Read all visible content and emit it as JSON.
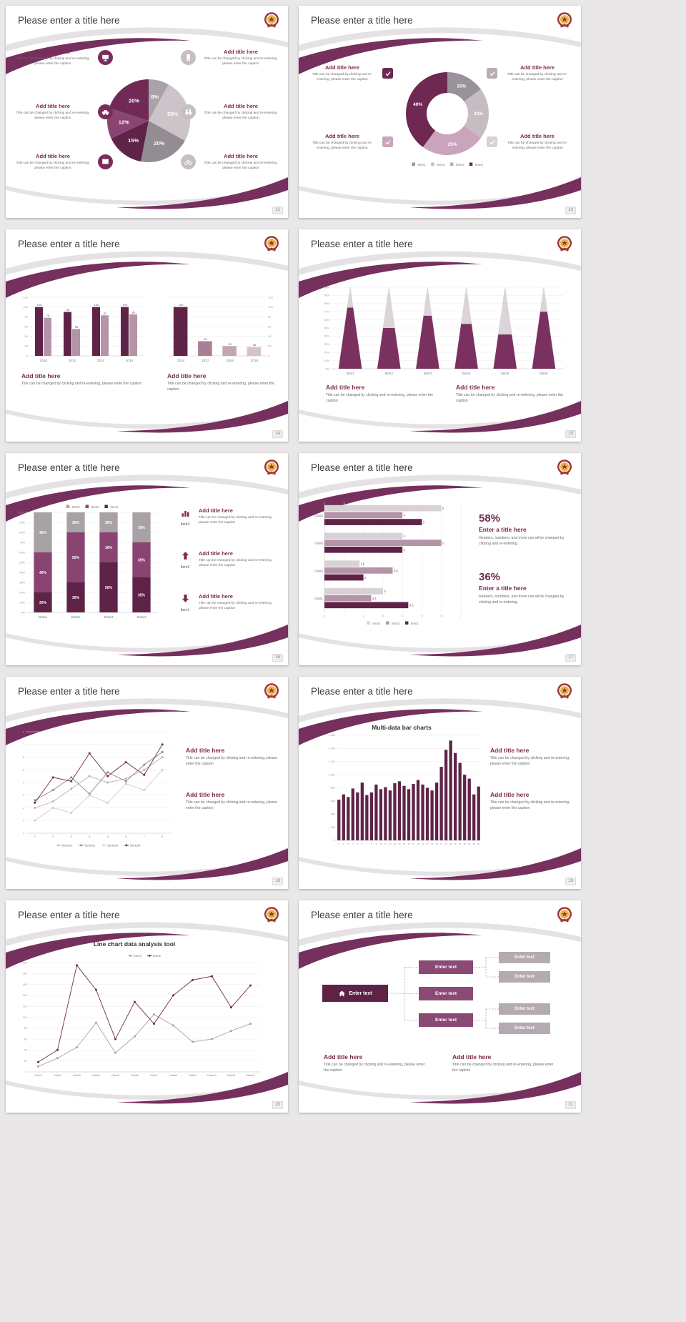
{
  "common": {
    "slide_title": "Please enter a title here",
    "add_title": "Add title here",
    "caption": "Title can be changed by clicking and re-entering, please enter the caption",
    "accent": "#76305d"
  },
  "slides": {
    "s12": {
      "page": "12",
      "icons": [
        "monitor",
        "phone",
        "car",
        "binoculars",
        "book",
        "bicycle"
      ],
      "icon_left_color": "#7a2e5c",
      "icon_right_color": "#c6bec3",
      "chart": {
        "type": "pie",
        "values": [
          8,
          25,
          20,
          15,
          12,
          20
        ],
        "labels": [
          "8%",
          "25%",
          "20%",
          "15%",
          "12%",
          "20%"
        ],
        "colors": [
          "#a9a2a8",
          "#cdc4ca",
          "#948c93",
          "#5f2347",
          "#8a4472",
          "#702a55"
        ]
      }
    },
    "s13": {
      "page": "13",
      "icons": [
        "check",
        "check",
        "check",
        "check"
      ],
      "check_colors": [
        "#6e2851",
        "#b6aeb4",
        "#c9a4ba",
        "#d8d2d5"
      ],
      "chart": {
        "type": "donut",
        "values": [
          15,
          20,
          25,
          40
        ],
        "labels": [
          "15%",
          "20%",
          "25%",
          "40%"
        ],
        "colors": [
          "#9a929a",
          "#c6bdc3",
          "#c9a4ba",
          "#6e2851"
        ],
        "legend": [
          "Item1",
          "Item2",
          "Item3",
          "Item4"
        ],
        "legend_colors": [
          "#9a929a",
          "#c6bdc3",
          "#c9a4ba",
          "#6e2851"
        ]
      }
    },
    "s14": {
      "page": "14",
      "chart_left": {
        "type": "columns",
        "categories": [
          "2010",
          "2012",
          "2014",
          "2016"
        ],
        "ymax": 120,
        "ystep": 20,
        "axis": "left",
        "series": [
          {
            "name": "Series1",
            "color": "#5f2347",
            "values": [
              100,
              90,
              100,
              100
            ]
          },
          {
            "name": "Series2",
            "color": "#b494a7",
            "values": [
              78,
              55,
              83,
              85
            ]
          }
        ]
      },
      "chart_right": {
        "type": "columns",
        "categories": [
          "2016",
          "2017",
          "2018",
          "2019"
        ],
        "ymax": 120,
        "ystep": 20,
        "axis": "right",
        "series": [
          {
            "name": "Series1",
            "color": "#5f2347",
            "colors": [
              "#5f2347",
              "#a97f97",
              "#c3a5b5",
              "#d6c2cd"
            ],
            "values": [
              100,
              30,
              20,
              18
            ]
          }
        ]
      }
    },
    "s15": {
      "page": "15",
      "chart": {
        "type": "cones",
        "items": [
          "Item1",
          "Item2",
          "Item3",
          "Item4",
          "Item5",
          "Item6"
        ],
        "fills": [
          75,
          50,
          65,
          55,
          42,
          70
        ],
        "color": "#7a3160",
        "base_color": "#dbd5d9"
      }
    },
    "s16": {
      "page": "16",
      "chart": {
        "type": "stacked",
        "categories": [
          "Data1",
          "Data2",
          "Data3",
          "Data4"
        ],
        "series": [
          {
            "name": "Item1",
            "color": "#5f2347",
            "values": [
              20,
              30,
              50,
              35
            ]
          },
          {
            "name": "Item2",
            "color": "#8a4472",
            "values": [
              40,
              50,
              30,
              35
            ]
          },
          {
            "name": "Item3",
            "color": "#a8a1a6",
            "values": [
              40,
              20,
              20,
              30
            ]
          }
        ],
        "legend": [
          "Item3",
          "Item2",
          "Item1"
        ]
      },
      "callouts": [
        {
          "icon": "bar-chart",
          "label": "Item3"
        },
        {
          "icon": "arrow-up",
          "label": "Item2"
        },
        {
          "icon": "arrow-down",
          "label": "Item1"
        }
      ]
    },
    "s17": {
      "page": "17",
      "chart": {
        "type": "hbars",
        "categories": [
          "Data1",
          "Data2",
          "Data3",
          "Data4"
        ],
        "xmax": 7,
        "legend": [
          "Item3",
          "Item2",
          "Item1"
        ],
        "series": [
          {
            "name": "Item3",
            "color": "#d8d2d6",
            "values": [
              3,
              1.8,
              4,
              6
            ]
          },
          {
            "name": "Item2",
            "color": "#b494a7",
            "values": [
              2.4,
              3.5,
              6,
              4
            ]
          },
          {
            "name": "Item1",
            "color": "#5f2347",
            "values": [
              4.3,
              2,
              4,
              5
            ]
          }
        ]
      },
      "stats": [
        {
          "pct": "58%",
          "title": "Enter a title here",
          "caption": "Headers, numbers, and more can all be changed by clicking and re-entering."
        },
        {
          "pct": "36%",
          "title": "Enter a title here",
          "caption": "Headers, numbers, and more can all be changed by clicking and re-entering."
        }
      ]
    },
    "s18": {
      "page": "18",
      "chart": {
        "type": "line",
        "x": [
          "1",
          "2",
          "3",
          "4",
          "5",
          "6",
          "7",
          "8"
        ],
        "ymax": 8,
        "ystep": 1,
        "legendPos": "bottom",
        "series": [
          {
            "name": "Series1",
            "color": "#b9b2b7",
            "values": [
              2,
              2.5,
              3.5,
              4.5,
              4,
              4.3,
              5,
              6
            ]
          },
          {
            "name": "Series2",
            "color": "#8d8590",
            "values": [
              2.6,
              3.4,
              4.4,
              3.1,
              4.8,
              4.1,
              5.4,
              6.4
            ]
          },
          {
            "name": "Series3",
            "color": "#d2cbcf",
            "values": [
              1,
              2,
              1.6,
              3,
              2.4,
              3.9,
              3.4,
              5
            ]
          },
          {
            "name": "Series4",
            "color": "#6e2851",
            "values": [
              2.4,
              4.4,
              4.1,
              6.3,
              4.5,
              5.6,
              4.6,
              7
            ]
          }
        ]
      }
    },
    "s19": {
      "page": "19",
      "chart_title": "Multi-data bar charts",
      "chart": {
        "type": "bars",
        "color": "#5f2347",
        "ymax": 1600,
        "ystep": 200,
        "categories": [
          "1",
          "2",
          "3",
          "4",
          "5",
          "6",
          "7",
          "8",
          "9",
          "10",
          "11",
          "12",
          "13",
          "14",
          "15",
          "16",
          "17",
          "18",
          "19",
          "20",
          "21",
          "22",
          "23",
          "24",
          "25",
          "26",
          "27",
          "28",
          "29",
          "30",
          "31"
        ],
        "values": [
          620,
          700,
          660,
          790,
          730,
          880,
          690,
          730,
          850,
          780,
          810,
          760,
          870,
          900,
          830,
          780,
          860,
          920,
          850,
          800,
          760,
          880,
          1120,
          1380,
          1520,
          1330,
          1180,
          1000,
          940,
          700,
          820
        ]
      }
    },
    "s20": {
      "page": "20",
      "chart_title": "Line chart data analysis tool",
      "chart": {
        "type": "line",
        "x": [
          "Data1",
          "Data2",
          "Data3",
          "Data4",
          "Data5",
          "Data6",
          "Data7",
          "Data8",
          "Data9",
          "Data10",
          "Data11",
          "Data12"
        ],
        "ymax": 200,
        "ystep": 20,
        "legendPos": "top",
        "series": [
          {
            "name": "Item1",
            "color": "#a9a2a7",
            "values": [
              10,
              25,
              45,
              90,
              35,
              65,
              105,
              85,
              55,
              60,
              75,
              88
            ]
          },
          {
            "name": "Item2",
            "color": "#6e2851",
            "values": [
              18,
              40,
              195,
              150,
              60,
              128,
              88,
              140,
              168,
              175,
              118,
              158
            ]
          }
        ]
      }
    },
    "s21": {
      "page": "21",
      "icons": [
        "home"
      ],
      "root": "Enter text",
      "mids": [
        "Enter text",
        "Enter text",
        "Enter text"
      ],
      "leaves": [
        "Enter text",
        "Enter text",
        "Enter text",
        "Enter text"
      ],
      "colors": {
        "root": "#5e2246",
        "mid": "#8a4a74",
        "leaf": "#b3abb1"
      }
    }
  }
}
